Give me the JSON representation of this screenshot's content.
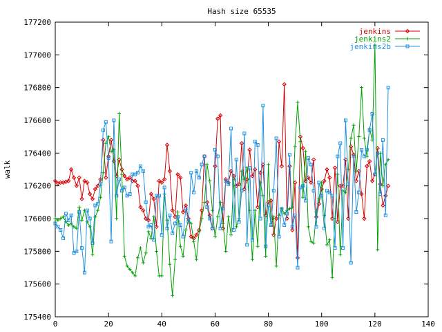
{
  "chart_data": {
    "type": "line",
    "title": "Hash size 65535",
    "xlabel": "",
    "ylabel": "walk",
    "xlim": [
      0,
      140
    ],
    "ylim": [
      175400,
      177200
    ],
    "xticks": [
      0,
      20,
      40,
      60,
      80,
      100,
      120,
      140
    ],
    "yticks": [
      175400,
      175600,
      175800,
      176000,
      176200,
      176400,
      176600,
      176800,
      177000,
      177200
    ],
    "legend_position": "top-right",
    "grid": false,
    "series": [
      {
        "name": "jenkins",
        "color": "#d80000",
        "marker": "diamond",
        "x": [
          0,
          1,
          2,
          3,
          4,
          5,
          6,
          7,
          8,
          9,
          10,
          11,
          12,
          13,
          14,
          15,
          16,
          17,
          18,
          19,
          20,
          21,
          22,
          23,
          24,
          25,
          26,
          27,
          28,
          29,
          30,
          31,
          32,
          33,
          34,
          35,
          36,
          37,
          38,
          39,
          40,
          41,
          42,
          43,
          44,
          45,
          46,
          47,
          48,
          49,
          50,
          51,
          52,
          53,
          54,
          55,
          56,
          57,
          58,
          59,
          60,
          61,
          62,
          63,
          64,
          65,
          66,
          67,
          68,
          69,
          70,
          71,
          72,
          73,
          74,
          75,
          76,
          77,
          78,
          79,
          80,
          81,
          82,
          83,
          84,
          85,
          86,
          87,
          88,
          89,
          90,
          91,
          92,
          93,
          94,
          95,
          96,
          97,
          98,
          99,
          100,
          101,
          102,
          103,
          104,
          105,
          106,
          107,
          108,
          109,
          110,
          111,
          112,
          113,
          114,
          115,
          116,
          117,
          118,
          119,
          120,
          121,
          122,
          123,
          124,
          125
        ],
        "y": [
          176230,
          176215,
          176220,
          176220,
          176225,
          176230,
          176300,
          176250,
          176200,
          176250,
          176120,
          176230,
          176220,
          176150,
          176120,
          176180,
          176200,
          176240,
          176480,
          176250,
          176380,
          176480,
          176350,
          176260,
          176360,
          176300,
          176260,
          176240,
          176250,
          176230,
          176230,
          176200,
          176070,
          176050,
          176000,
          175990,
          176150,
          176120,
          175950,
          176230,
          176220,
          176240,
          176450,
          176290,
          176050,
          176010,
          176270,
          176250,
          176040,
          176080,
          176000,
          175890,
          175880,
          175900,
          175930,
          176050,
          176380,
          176100,
          176020,
          175940,
          176320,
          176610,
          176630,
          175940,
          176240,
          176220,
          176290,
          176260,
          176200,
          176210,
          176460,
          176180,
          176240,
          176420,
          176260,
          176300,
          176070,
          176280,
          176330,
          176020,
          176100,
          176110,
          175900,
          176000,
          176470,
          176320,
          176820,
          176000,
          176320,
          175930,
          176220,
          175760,
          176500,
          176430,
          176230,
          176250,
          176220,
          176360,
          176010,
          176090,
          176180,
          176230,
          176300,
          176250,
          176000,
          176310,
          175980,
          176200,
          176200,
          176360,
          176000,
          176440,
          176390,
          176230,
          176290,
          176150,
          176000,
          176320,
          176350,
          176230,
          176270,
          176430,
          176210,
          176080,
          176140,
          176200
        ]
      },
      {
        "name": "jenkins2",
        "color": "#00a000",
        "marker": "plus",
        "x": [
          0,
          1,
          2,
          3,
          4,
          5,
          6,
          7,
          8,
          9,
          10,
          11,
          12,
          13,
          14,
          15,
          16,
          17,
          18,
          19,
          20,
          21,
          22,
          23,
          24,
          25,
          26,
          27,
          28,
          29,
          30,
          31,
          32,
          33,
          34,
          35,
          36,
          37,
          38,
          39,
          40,
          41,
          42,
          43,
          44,
          45,
          46,
          47,
          48,
          49,
          50,
          51,
          52,
          53,
          54,
          55,
          56,
          57,
          58,
          59,
          60,
          61,
          62,
          63,
          64,
          65,
          66,
          67,
          68,
          69,
          70,
          71,
          72,
          73,
          74,
          75,
          76,
          77,
          78,
          79,
          80,
          81,
          82,
          83,
          84,
          85,
          86,
          87,
          88,
          89,
          90,
          91,
          92,
          93,
          94,
          95,
          96,
          97,
          98,
          99,
          100,
          101,
          102,
          103,
          104,
          105,
          106,
          107,
          108,
          109,
          110,
          111,
          112,
          113,
          114,
          115,
          116,
          117,
          118,
          119,
          120,
          121,
          122,
          123,
          124,
          125
        ],
        "y": [
          176000,
          175990,
          176000,
          176010,
          175980,
          175960,
          175970,
          175950,
          175940,
          176070,
          175990,
          176050,
          175980,
          175950,
          175780,
          176010,
          176050,
          176130,
          176280,
          176460,
          176500,
          176410,
          176420,
          176000,
          176640,
          176270,
          175770,
          175710,
          175690,
          175670,
          175650,
          175760,
          175820,
          175730,
          175790,
          175920,
          175880,
          176010,
          175800,
          175650,
          175650,
          176150,
          175990,
          175720,
          175530,
          175750,
          176040,
          175830,
          175770,
          175930,
          175990,
          175970,
          175860,
          175750,
          175920,
          176000,
          176100,
          176330,
          176230,
          176050,
          175890,
          176010,
          176100,
          175970,
          175800,
          176010,
          175900,
          176240,
          175950,
          176000,
          176290,
          176240,
          176310,
          176050,
          175750,
          176050,
          175830,
          176220,
          176140,
          175770,
          176330,
          175960,
          176010,
          175710,
          176020,
          176060,
          176030,
          176050,
          176060,
          176070,
          176440,
          176710,
          176470,
          176130,
          176410,
          175950,
          175860,
          175850,
          176040,
          176120,
          176220,
          176020,
          175840,
          175870,
          175640,
          176000,
          176270,
          175780,
          176170,
          176160,
          176300,
          176490,
          176570,
          176290,
          176500,
          176800,
          176490,
          176380,
          176550,
          176480,
          177060,
          175810,
          176400,
          176200,
          176330,
          176360
        ]
      },
      {
        "name": "jenkins2b",
        "color": "#1e90e0",
        "marker": "square",
        "x": [
          0,
          1,
          2,
          3,
          4,
          5,
          6,
          7,
          8,
          9,
          10,
          11,
          12,
          13,
          14,
          15,
          16,
          17,
          18,
          19,
          20,
          21,
          22,
          23,
          24,
          25,
          26,
          27,
          28,
          29,
          30,
          31,
          32,
          33,
          34,
          35,
          36,
          37,
          38,
          39,
          40,
          41,
          42,
          43,
          44,
          45,
          46,
          47,
          48,
          49,
          50,
          51,
          52,
          53,
          54,
          55,
          56,
          57,
          58,
          59,
          60,
          61,
          62,
          63,
          64,
          65,
          66,
          67,
          68,
          69,
          70,
          71,
          72,
          73,
          74,
          75,
          76,
          77,
          78,
          79,
          80,
          81,
          82,
          83,
          84,
          85,
          86,
          87,
          88,
          89,
          90,
          91,
          92,
          93,
          94,
          95,
          96,
          97,
          98,
          99,
          100,
          101,
          102,
          103,
          104,
          105,
          106,
          107,
          108,
          109,
          110,
          111,
          112,
          113,
          114,
          115,
          116,
          117,
          118,
          119,
          120,
          121,
          122,
          123,
          124,
          125
        ],
        "y": [
          175970,
          175950,
          175930,
          175880,
          176030,
          175990,
          176020,
          175790,
          175800,
          176040,
          175820,
          175670,
          176050,
          176000,
          175850,
          176080,
          176090,
          176210,
          176540,
          176590,
          176370,
          175860,
          176600,
          176140,
          176240,
          176170,
          176190,
          176140,
          176150,
          176270,
          176270,
          176280,
          176320,
          176290,
          176100,
          175950,
          175960,
          175870,
          176140,
          176140,
          175900,
          176190,
          175940,
          176020,
          175910,
          175970,
          176010,
          175960,
          175890,
          176060,
          175980,
          176280,
          176160,
          176290,
          176250,
          176330,
          176380,
          176070,
          176000,
          175940,
          176420,
          176380,
          175940,
          176060,
          176230,
          176210,
          176550,
          175930,
          176360,
          175980,
          176170,
          176520,
          175840,
          176310,
          175870,
          176470,
          176450,
          176000,
          176690,
          175830,
          176080,
          175960,
          176170,
          176490,
          175890,
          176060,
          175960,
          176030,
          176390,
          175950,
          176020,
          175700,
          176190,
          176200,
          176110,
          176370,
          176330,
          176170,
          175950,
          176220,
          176140,
          175940,
          176170,
          176160,
          176140,
          175820,
          176380,
          176460,
          175820,
          176600,
          176210,
          175730,
          176380,
          176040,
          176160,
          176420,
          176380,
          176420,
          176540,
          176640,
          176270,
          176400,
          176150,
          176480,
          176020,
          176800
        ]
      }
    ]
  }
}
